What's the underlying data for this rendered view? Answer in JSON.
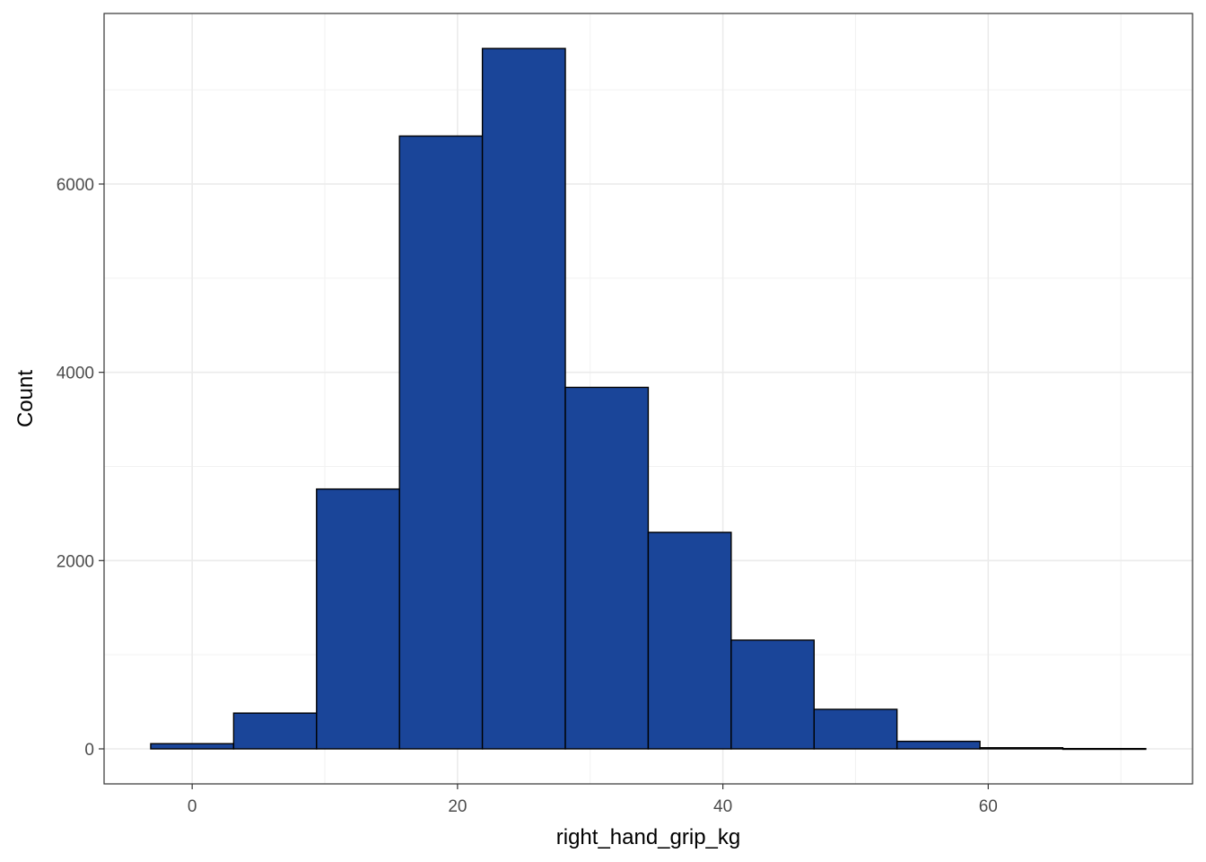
{
  "chart_data": {
    "type": "bar",
    "subtype": "histogram",
    "title": "",
    "xlabel": "right_hand_grip_kg",
    "ylabel": "Count",
    "bin_width": 6.25,
    "bins": [
      {
        "start": -3.125,
        "end": 3.125,
        "count": 55
      },
      {
        "start": 3.125,
        "end": 9.375,
        "count": 380
      },
      {
        "start": 9.375,
        "end": 15.625,
        "count": 2760
      },
      {
        "start": 15.625,
        "end": 21.875,
        "count": 6510
      },
      {
        "start": 21.875,
        "end": 28.125,
        "count": 7440
      },
      {
        "start": 28.125,
        "end": 34.375,
        "count": 3840
      },
      {
        "start": 34.375,
        "end": 40.625,
        "count": 2300
      },
      {
        "start": 40.625,
        "end": 46.875,
        "count": 1155
      },
      {
        "start": 46.875,
        "end": 53.125,
        "count": 420
      },
      {
        "start": 53.125,
        "end": 59.375,
        "count": 80
      },
      {
        "start": 59.375,
        "end": 65.625,
        "count": 12
      },
      {
        "start": 65.625,
        "end": 71.875,
        "count": 3
      }
    ],
    "xlim": [
      -6.64,
      75.4
    ],
    "ylim": [
      -372,
      7812
    ],
    "x_ticks": [
      0,
      20,
      40,
      60
    ],
    "x_tick_labels": [
      "0",
      "20",
      "40",
      "60"
    ],
    "x_minor": [
      10,
      30,
      50,
      70
    ],
    "y_ticks": [
      0,
      2000,
      4000,
      6000
    ],
    "y_tick_labels": [
      "0",
      "2000",
      "4000",
      "6000"
    ],
    "y_minor": [
      1000,
      3000,
      5000,
      7000
    ],
    "grid": true,
    "legend": "none",
    "colors": {
      "bar_fill": "#1a4599",
      "bar_stroke": "#000000",
      "grid_major": "#ebebeb",
      "grid_minor": "#f2f2f2",
      "panel_border": "#333333",
      "tick_text": "#4d4d4d"
    }
  }
}
